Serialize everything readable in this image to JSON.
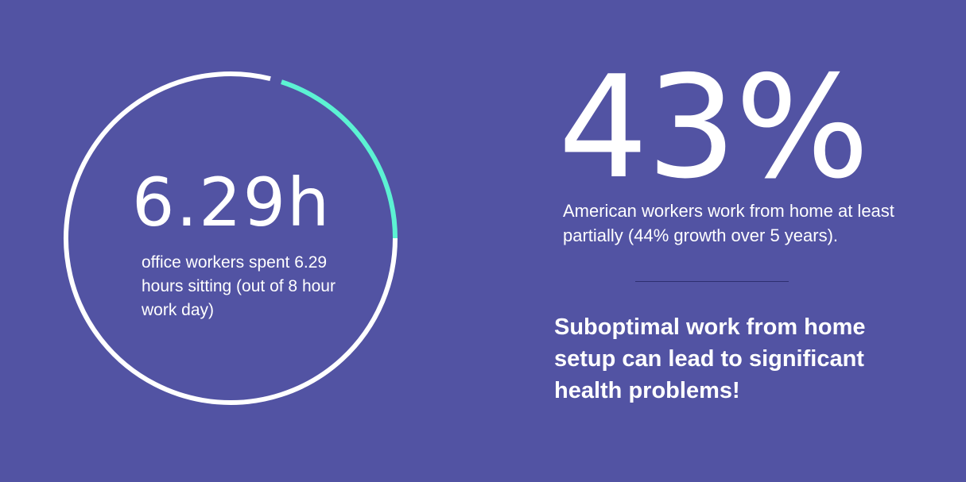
{
  "colors": {
    "background": "#5253a3",
    "ring": "#ffffff",
    "ring_highlight": "#5cf2d3",
    "text": "#ffffff"
  },
  "sitting_stat": {
    "value": "6.29h",
    "caption": "office workers spent 6.29 hours sitting (out of 8 hour work day)",
    "highlighted_fraction": 0.2
  },
  "remote_stat": {
    "value": "43%",
    "caption": "American workers work from home at least partially (44% growth over 5 years)."
  },
  "callout": "Suboptimal work from home setup can lead to significant health problems!"
}
